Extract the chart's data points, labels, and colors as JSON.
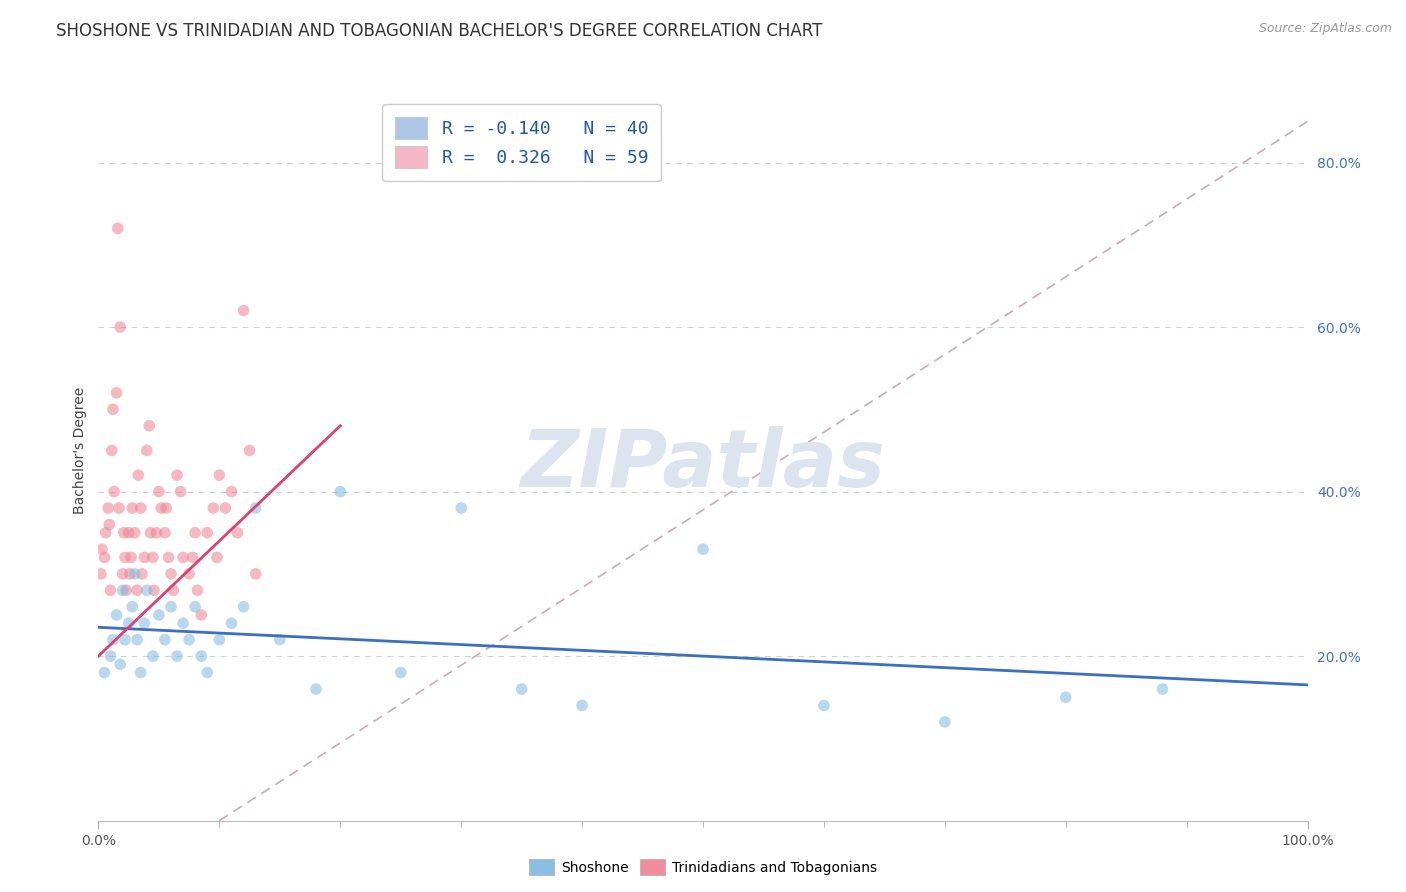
{
  "title": "SHOSHONE VS TRINIDADIAN AND TOBAGONIAN BACHELOR'S DEGREE CORRELATION CHART",
  "source": "Source: ZipAtlas.com",
  "ylabel": "Bachelor's Degree",
  "watermark": "ZIPatlas",
  "legend_line1": "R = -0.140   N = 40",
  "legend_line2": "R =  0.326   N = 59",
  "legend_color1": "#aec6e8",
  "legend_color2": "#f4b8c8",
  "shoshone_color": "#7db8e0",
  "trinidadian_color": "#f08090",
  "shoshone_x": [
    0.5,
    1.0,
    1.2,
    1.5,
    1.8,
    2.0,
    2.2,
    2.5,
    2.8,
    3.0,
    3.2,
    3.5,
    3.8,
    4.0,
    4.5,
    5.0,
    5.5,
    6.0,
    6.5,
    7.0,
    7.5,
    8.0,
    8.5,
    9.0,
    10.0,
    11.0,
    12.0,
    13.0,
    15.0,
    18.0,
    20.0,
    25.0,
    30.0,
    35.0,
    40.0,
    50.0,
    60.0,
    70.0,
    80.0,
    88.0
  ],
  "shoshone_y": [
    18.0,
    20.0,
    22.0,
    25.0,
    19.0,
    28.0,
    22.0,
    24.0,
    26.0,
    30.0,
    22.0,
    18.0,
    24.0,
    28.0,
    20.0,
    25.0,
    22.0,
    26.0,
    20.0,
    24.0,
    22.0,
    26.0,
    20.0,
    18.0,
    22.0,
    24.0,
    26.0,
    38.0,
    22.0,
    16.0,
    40.0,
    18.0,
    38.0,
    16.0,
    14.0,
    33.0,
    14.0,
    12.0,
    15.0,
    16.0
  ],
  "trinidadian_x": [
    0.2,
    0.3,
    0.5,
    0.6,
    0.8,
    0.9,
    1.0,
    1.1,
    1.2,
    1.3,
    1.5,
    1.6,
    1.7,
    1.8,
    2.0,
    2.1,
    2.2,
    2.3,
    2.5,
    2.6,
    2.7,
    2.8,
    3.0,
    3.2,
    3.3,
    3.5,
    3.6,
    3.8,
    4.0,
    4.2,
    4.3,
    4.5,
    4.6,
    4.8,
    5.0,
    5.2,
    5.5,
    5.6,
    5.8,
    6.0,
    6.2,
    6.5,
    6.8,
    7.0,
    7.5,
    7.8,
    8.0,
    8.2,
    8.5,
    9.0,
    9.5,
    9.8,
    10.0,
    10.5,
    11.0,
    11.5,
    12.0,
    12.5,
    13.0
  ],
  "trinidadian_y": [
    30.0,
    33.0,
    32.0,
    35.0,
    38.0,
    36.0,
    28.0,
    45.0,
    50.0,
    40.0,
    52.0,
    72.0,
    38.0,
    60.0,
    30.0,
    35.0,
    32.0,
    28.0,
    35.0,
    30.0,
    32.0,
    38.0,
    35.0,
    28.0,
    42.0,
    38.0,
    30.0,
    32.0,
    45.0,
    48.0,
    35.0,
    32.0,
    28.0,
    35.0,
    40.0,
    38.0,
    35.0,
    38.0,
    32.0,
    30.0,
    28.0,
    42.0,
    40.0,
    32.0,
    30.0,
    32.0,
    35.0,
    28.0,
    25.0,
    35.0,
    38.0,
    32.0,
    42.0,
    38.0,
    40.0,
    35.0,
    62.0,
    45.0,
    30.0
  ],
  "xlim": [
    0,
    100
  ],
  "ylim": [
    0,
    90
  ],
  "ytick_vals": [
    20,
    40,
    60,
    80
  ],
  "background_color": "#ffffff",
  "grid_color": "#d0d0d0",
  "dot_size": 70,
  "dot_alpha": 0.55,
  "blue_line_color": "#3a6fc4",
  "pink_line_color": "#e04070",
  "ref_line_color": "#d0a8b8",
  "title_fontsize": 12,
  "axis_label_fontsize": 10,
  "tick_fontsize": 10,
  "legend_fontsize": 13,
  "watermark_color": "#dce4f0",
  "watermark_fontsize": 58,
  "source_fontsize": 9,
  "blue_line_x0": 0,
  "blue_line_y0": 23.5,
  "blue_line_x1": 100,
  "blue_line_y1": 16.5,
  "pink_line_x0": 0,
  "pink_line_y0": 20.0,
  "pink_line_x1": 20,
  "pink_line_y1": 48.0,
  "ref_line_x0": 10,
  "ref_line_y0": 0,
  "ref_line_x1": 100,
  "ref_line_y1": 85
}
